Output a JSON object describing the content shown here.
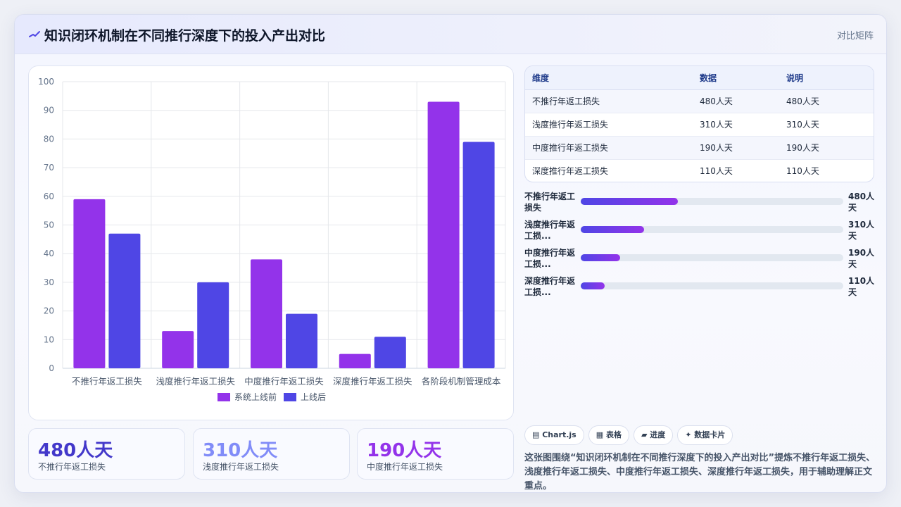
{
  "header": {
    "title": "知识闭环机制在不同推行深度下的投入产出对比",
    "tag": "对比矩阵"
  },
  "chart_data": {
    "type": "bar",
    "categories": [
      "不推行年返工损失",
      "浅度推行年返工损失",
      "中度推行年返工损失",
      "深度推行年返工损失",
      "各阶段机制管理成本"
    ],
    "series": [
      {
        "name": "系统上线前",
        "values": [
          59,
          13,
          38,
          5,
          93
        ],
        "color": "#9333ea"
      },
      {
        "name": "上线后",
        "values": [
          47,
          30,
          19,
          11,
          79
        ],
        "color": "#4f46e5"
      }
    ],
    "ylim": [
      0,
      100
    ],
    "yticks": [
      0,
      10,
      20,
      30,
      40,
      50,
      60,
      70,
      80,
      90,
      100
    ],
    "grid": true,
    "legend": "bottom"
  },
  "table": {
    "headers": [
      "维度",
      "数据",
      "说明"
    ],
    "rows": [
      [
        "不推行年返工损失",
        "480人天",
        "480人天"
      ],
      [
        "浅度推行年返工损失",
        "310人天",
        "310人天"
      ],
      [
        "中度推行年返工损失",
        "190人天",
        "190人天"
      ],
      [
        "深度推行年返工损失",
        "110人天",
        "110人天"
      ]
    ]
  },
  "progress": [
    {
      "label": "不推行年返工损失",
      "display": "不推行年返工\n损失",
      "value": "480人\n天",
      "fraction": 0.37
    },
    {
      "label": "浅度推行年返工损失",
      "display": "浅度推行年返\n工损...",
      "value": "310人\n天",
      "fraction": 0.24
    },
    {
      "label": "中度推行年返工损失",
      "display": "中度推行年返\n工损...",
      "value": "190人\n天",
      "fraction": 0.15
    },
    {
      "label": "深度推行年返工损失",
      "display": "深度推行年返\n工损...",
      "value": "110人\n天",
      "fraction": 0.09
    }
  ],
  "kpis": [
    {
      "value": "480人天",
      "label": "不推行年返工损失",
      "color": "#4338ca"
    },
    {
      "value": "310人天",
      "label": "浅度推行年返工损失",
      "color": "#818cf8"
    },
    {
      "value": "190人天",
      "label": "中度推行年返工损失",
      "color": "#9333ea"
    }
  ],
  "chips": [
    "▤ Chart.js",
    "▦ 表格",
    "▰ 进度",
    "✦ 数据卡片"
  ],
  "summary": "这张图围绕“知识闭环机制在不同推行深度下的投入产出对比”提炼不推行年返工损失、浅度推行年返工损失、中度推行年返工损失、深度推行年返工损失，用于辅助理解正文重点。"
}
